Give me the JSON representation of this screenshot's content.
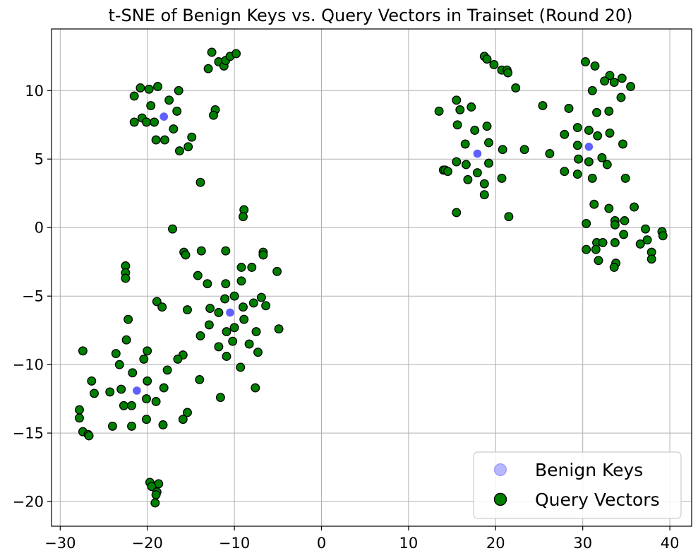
{
  "chart_data": {
    "type": "scatter",
    "title": "t-SNE of Benign Keys vs. Query Vectors in Trainset (Round 20)",
    "xlabel": "",
    "ylabel": "",
    "xlim": [
      -31,
      42.5
    ],
    "ylim": [
      -21.8,
      14.5
    ],
    "x_ticks": [
      -30,
      -20,
      -10,
      0,
      10,
      20,
      30,
      40
    ],
    "y_ticks": [
      -20,
      -15,
      -10,
      -5,
      0,
      5,
      10
    ],
    "x_tick_labels": [
      "−30",
      "−20",
      "−10",
      "0",
      "10",
      "20",
      "30",
      "40"
    ],
    "y_tick_labels": [
      "−20",
      "−15",
      "−10",
      "−5",
      "0",
      "5",
      "10"
    ],
    "grid": true,
    "legend_position": "lower-right",
    "colors": {
      "benign": "#3333ff",
      "query": "#008000",
      "query_edge": "#000000",
      "grid": "#b0b0b0",
      "legend_frame": "#cccccc"
    },
    "series": [
      {
        "name": "Benign Keys",
        "points": [
          [
            -18.1,
            8.1
          ],
          [
            -10.5,
            -6.2
          ],
          [
            -21.2,
            -11.9
          ],
          [
            17.9,
            5.4
          ],
          [
            30.7,
            5.9
          ]
        ]
      },
      {
        "name": "Query Vectors",
        "points": [
          [
            -12.6,
            12.8
          ],
          [
            -13.0,
            11.6
          ],
          [
            -11.8,
            12.1
          ],
          [
            -11.2,
            11.8
          ],
          [
            -11.0,
            12.2
          ],
          [
            -10.5,
            12.5
          ],
          [
            -9.8,
            12.7
          ],
          [
            -20.8,
            10.2
          ],
          [
            -19.8,
            10.1
          ],
          [
            -18.8,
            10.3
          ],
          [
            -21.5,
            9.6
          ],
          [
            -17.5,
            9.3
          ],
          [
            -16.4,
            10.0
          ],
          [
            -19.6,
            8.9
          ],
          [
            -12.2,
            8.6
          ],
          [
            -12.4,
            8.2
          ],
          [
            -16.6,
            8.5
          ],
          [
            -20.6,
            8.0
          ],
          [
            -21.5,
            7.7
          ],
          [
            -20.1,
            7.7
          ],
          [
            -19.2,
            7.7
          ],
          [
            -17.0,
            7.2
          ],
          [
            -19.0,
            6.4
          ],
          [
            -18.0,
            6.4
          ],
          [
            -14.9,
            6.6
          ],
          [
            -15.3,
            5.9
          ],
          [
            -16.3,
            5.6
          ],
          [
            -13.9,
            3.3
          ],
          [
            -17.1,
            -0.1
          ],
          [
            -8.9,
            1.3
          ],
          [
            -9.0,
            0.8
          ],
          [
            -13.8,
            -1.7
          ],
          [
            -15.8,
            -1.8
          ],
          [
            -15.6,
            -2.0
          ],
          [
            -11.0,
            -1.7
          ],
          [
            -6.7,
            -1.8
          ],
          [
            -6.7,
            -2.0
          ],
          [
            -9.2,
            -2.9
          ],
          [
            -8.0,
            -2.9
          ],
          [
            -5.1,
            -3.2
          ],
          [
            -14.2,
            -3.5
          ],
          [
            -13.1,
            -4.1
          ],
          [
            -11.0,
            -4.1
          ],
          [
            -9.2,
            -3.9
          ],
          [
            -22.5,
            -2.8
          ],
          [
            -22.5,
            -3.3
          ],
          [
            -22.5,
            -3.7
          ],
          [
            -11.1,
            -5.2
          ],
          [
            -10.0,
            -5.0
          ],
          [
            -6.9,
            -5.1
          ],
          [
            -18.9,
            -5.4
          ],
          [
            -18.3,
            -5.8
          ],
          [
            -15.4,
            -6.0
          ],
          [
            -12.8,
            -5.9
          ],
          [
            -9.0,
            -5.8
          ],
          [
            -7.8,
            -5.5
          ],
          [
            -6.4,
            -5.7
          ],
          [
            -11.8,
            -6.2
          ],
          [
            -8.9,
            -6.7
          ],
          [
            -22.2,
            -6.7
          ],
          [
            -12.9,
            -7.1
          ],
          [
            -10.0,
            -7.3
          ],
          [
            -4.9,
            -7.4
          ],
          [
            -13.9,
            -7.9
          ],
          [
            -10.9,
            -7.6
          ],
          [
            -7.5,
            -7.6
          ],
          [
            -22.4,
            -8.2
          ],
          [
            -10.2,
            -8.3
          ],
          [
            -8.3,
            -8.5
          ],
          [
            -11.8,
            -8.7
          ],
          [
            -7.3,
            -9.1
          ],
          [
            -27.4,
            -9.0
          ],
          [
            -20.0,
            -9.0
          ],
          [
            -23.6,
            -9.2
          ],
          [
            -15.9,
            -9.3
          ],
          [
            -10.9,
            -9.4
          ],
          [
            -16.5,
            -9.6
          ],
          [
            -20.4,
            -9.6
          ],
          [
            -23.2,
            -10.0
          ],
          [
            -9.3,
            -10.2
          ],
          [
            -17.7,
            -10.4
          ],
          [
            -21.7,
            -10.6
          ],
          [
            -26.4,
            -11.2
          ],
          [
            -20.0,
            -11.2
          ],
          [
            -14.0,
            -11.1
          ],
          [
            -24.3,
            -12.0
          ],
          [
            -23.0,
            -11.8
          ],
          [
            -18.1,
            -11.7
          ],
          [
            -7.6,
            -11.7
          ],
          [
            -26.1,
            -12.1
          ],
          [
            -11.6,
            -12.4
          ],
          [
            -20.1,
            -12.5
          ],
          [
            -22.7,
            -13.0
          ],
          [
            -21.8,
            -13.0
          ],
          [
            -19.0,
            -12.7
          ],
          [
            -27.8,
            -13.3
          ],
          [
            -15.4,
            -13.5
          ],
          [
            -27.8,
            -13.9
          ],
          [
            -20.1,
            -14.0
          ],
          [
            -15.9,
            -14.0
          ],
          [
            -24.0,
            -14.5
          ],
          [
            -21.8,
            -14.5
          ],
          [
            -18.2,
            -14.4
          ],
          [
            -27.4,
            -14.9
          ],
          [
            -26.8,
            -15.1
          ],
          [
            -26.7,
            -15.2
          ],
          [
            -19.7,
            -18.6
          ],
          [
            -18.7,
            -18.7
          ],
          [
            -19.5,
            -18.9
          ],
          [
            -18.9,
            -19.3
          ],
          [
            -19.0,
            -19.5
          ],
          [
            -19.1,
            -20.1
          ],
          [
            18.7,
            12.5
          ],
          [
            19.0,
            12.3
          ],
          [
            19.8,
            11.9
          ],
          [
            20.7,
            11.5
          ],
          [
            21.3,
            11.5
          ],
          [
            21.4,
            11.3
          ],
          [
            22.3,
            10.2
          ],
          [
            15.5,
            9.3
          ],
          [
            13.5,
            8.5
          ],
          [
            15.9,
            8.6
          ],
          [
            17.2,
            8.8
          ],
          [
            15.6,
            7.5
          ],
          [
            17.6,
            7.1
          ],
          [
            19.0,
            7.4
          ],
          [
            19.2,
            6.2
          ],
          [
            16.5,
            6.1
          ],
          [
            20.8,
            5.7
          ],
          [
            23.3,
            5.7
          ],
          [
            15.5,
            4.8
          ],
          [
            16.6,
            4.6
          ],
          [
            19.2,
            4.7
          ],
          [
            17.9,
            4.0
          ],
          [
            14.0,
            4.2
          ],
          [
            14.2,
            4.2
          ],
          [
            14.5,
            4.1
          ],
          [
            16.8,
            3.5
          ],
          [
            20.7,
            3.6
          ],
          [
            18.7,
            3.2
          ],
          [
            18.7,
            2.4
          ],
          [
            15.5,
            1.1
          ],
          [
            21.5,
            0.8
          ],
          [
            30.3,
            12.1
          ],
          [
            31.4,
            11.8
          ],
          [
            33.1,
            11.1
          ],
          [
            34.5,
            10.9
          ],
          [
            32.5,
            10.7
          ],
          [
            33.6,
            10.6
          ],
          [
            35.5,
            10.3
          ],
          [
            31.1,
            10.0
          ],
          [
            34.4,
            9.5
          ],
          [
            25.4,
            8.9
          ],
          [
            28.4,
            8.7
          ],
          [
            33.0,
            8.5
          ],
          [
            31.6,
            8.4
          ],
          [
            29.4,
            7.3
          ],
          [
            30.7,
            7.1
          ],
          [
            33.1,
            6.9
          ],
          [
            27.9,
            6.8
          ],
          [
            31.7,
            6.7
          ],
          [
            34.6,
            6.1
          ],
          [
            29.4,
            6.0
          ],
          [
            32.2,
            5.1
          ],
          [
            29.5,
            5.0
          ],
          [
            30.7,
            4.8
          ],
          [
            32.8,
            4.6
          ],
          [
            26.2,
            5.4
          ],
          [
            27.9,
            4.1
          ],
          [
            29.4,
            3.9
          ],
          [
            31.1,
            3.6
          ],
          [
            34.9,
            3.6
          ],
          [
            31.3,
            1.7
          ],
          [
            33.0,
            1.4
          ],
          [
            35.9,
            1.5
          ],
          [
            33.7,
            0.5
          ],
          [
            33.7,
            0.2
          ],
          [
            34.8,
            0.5
          ],
          [
            30.4,
            0.3
          ],
          [
            37.2,
            -0.1
          ],
          [
            39.1,
            -0.3
          ],
          [
            34.7,
            -0.5
          ],
          [
            39.2,
            -0.6
          ],
          [
            31.6,
            -1.1
          ],
          [
            32.3,
            -1.1
          ],
          [
            33.7,
            -1.1
          ],
          [
            36.6,
            -1.2
          ],
          [
            37.4,
            -0.9
          ],
          [
            30.4,
            -1.6
          ],
          [
            31.5,
            -1.6
          ],
          [
            37.9,
            -1.8
          ],
          [
            31.8,
            -2.4
          ],
          [
            33.8,
            -2.6
          ],
          [
            37.9,
            -2.3
          ],
          [
            33.6,
            -2.9
          ]
        ]
      }
    ]
  }
}
